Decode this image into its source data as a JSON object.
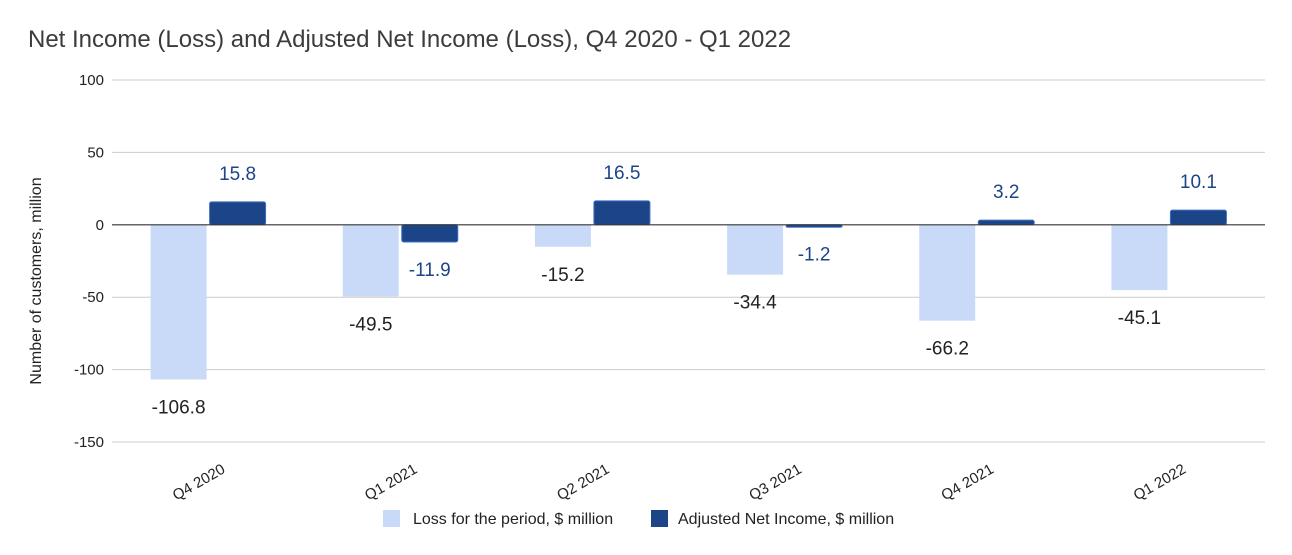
{
  "chart_data": {
    "type": "bar",
    "title": "Net Income (Loss) and Adjusted Net Income (Loss), Q4 2020 - Q1 2022",
    "xlabel": "",
    "ylabel": "Number of customers, million",
    "ylim": [
      -150,
      100
    ],
    "yticks": [
      100,
      50,
      0,
      -50,
      -100,
      -150
    ],
    "grid": true,
    "legend_position": "bottom",
    "categories": [
      "Q4 2020",
      "Q1 2021",
      "Q2 2021",
      "Q3 2021",
      "Q4 2021",
      "Q1 2022"
    ],
    "series": [
      {
        "name": "Loss for the period, $ million",
        "color": "#c9daf8",
        "label_color": "#222222",
        "values": [
          -106.8,
          -49.5,
          -15.2,
          -34.4,
          -66.2,
          -45.1
        ]
      },
      {
        "name": "Adjusted Net Income, $ million",
        "color": "#1c4587",
        "label_color": "#1c4587",
        "values": [
          15.8,
          -11.9,
          16.5,
          -1.2,
          3.2,
          10.1
        ]
      }
    ]
  }
}
